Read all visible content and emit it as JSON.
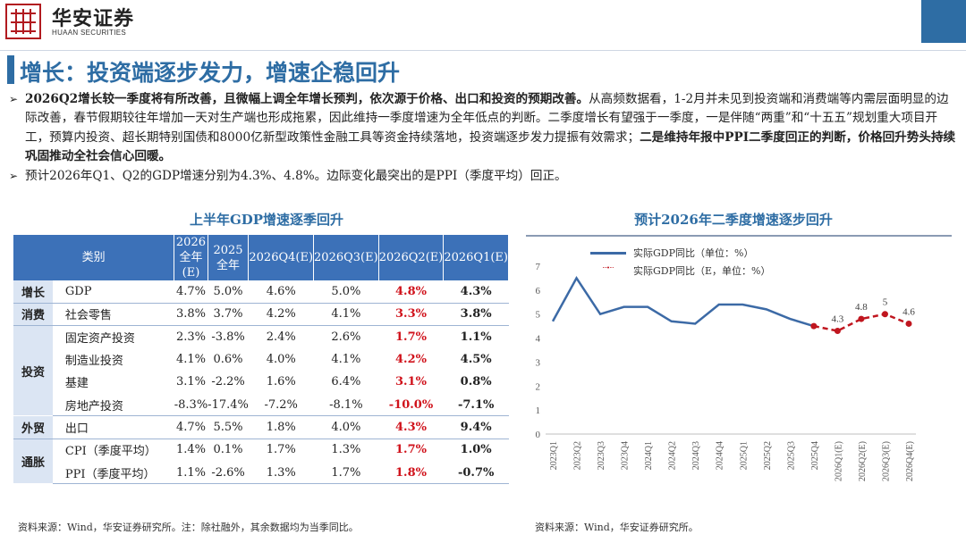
{
  "brand": {
    "cn": "华安证券",
    "en": "HUAAN SECURITIES"
  },
  "title": "增长：投资端逐步发力，增速企稳回升",
  "bullets": [
    {
      "bold": "2026Q2增长较一季度将有所改善，且微幅上调全年增长预判，依次源于价格、出口和投资的预期改善。",
      "text1": "从高频数据看，1-2月并未见到投资端和消费端等内需层面明显的边际改善，春节假期较往年增加一天对生产端也形成拖累，因此维持一季度增速为全年低点的判断。二季度增长有望强于一季度，一是伴随“两重”和“十五五”规划重大项目开工，预算内投资、超长期特别国债和8000亿新型政策性金融工具等资金持续落地，投资端逐步发力提振有效需求；",
      "bold2": "二是维持年报中PPI二季度回正的判断，价格回升势头持续巩固推动全社会信心回暖。"
    },
    {
      "text1": "预计2026年Q1、Q2的GDP增速分别为4.3%、4.8%。边际变化最突出的是PPI（季度平均）回正。"
    }
  ],
  "left_heading": "上半年GDP增速逐季回升",
  "right_heading": "预计2026年二季度增速逐步回升",
  "table": {
    "header_category": "类别",
    "columns": [
      "2026全年(E)",
      "2025全年",
      "2026Q4(E)",
      "2026Q3(E)",
      "2026Q2(E)",
      "2026Q1(E)"
    ],
    "groups": [
      {
        "name": "增长",
        "rows": [
          {
            "item": "GDP",
            "values": [
              "4.7%",
              "5.0%",
              "4.6%",
              "5.0%",
              "4.8%",
              "4.3%"
            ]
          }
        ]
      },
      {
        "name": "消费",
        "rows": [
          {
            "item": "社会零售",
            "values": [
              "3.8%",
              "3.7%",
              "4.2%",
              "4.1%",
              "3.3%",
              "3.8%"
            ]
          }
        ]
      },
      {
        "name": "投资",
        "rows": [
          {
            "item": "固定资产投资",
            "values": [
              "2.3%",
              "-3.8%",
              "2.4%",
              "2.6%",
              "1.7%",
              "1.1%"
            ]
          },
          {
            "item": "制造业投资",
            "values": [
              "4.1%",
              "0.6%",
              "4.0%",
              "4.1%",
              "4.2%",
              "4.5%"
            ]
          },
          {
            "item": "基建",
            "values": [
              "3.1%",
              "-2.2%",
              "1.6%",
              "6.4%",
              "3.1%",
              "0.8%"
            ]
          },
          {
            "item": "房地产投资",
            "values": [
              "-8.3%",
              "-17.4%",
              "-7.2%",
              "-8.1%",
              "-10.0%",
              "-7.1%"
            ]
          }
        ]
      },
      {
        "name": "外贸",
        "rows": [
          {
            "item": "出口",
            "values": [
              "4.7%",
              "5.5%",
              "1.8%",
              "4.0%",
              "4.3%",
              "9.4%"
            ]
          }
        ]
      },
      {
        "name": "通胀",
        "rows": [
          {
            "item": "CPI（季度平均）",
            "values": [
              "1.4%",
              "0.1%",
              "1.7%",
              "1.3%",
              "1.7%",
              "1.0%"
            ]
          },
          {
            "item": "PPI（季度平均）",
            "values": [
              "1.1%",
              "-2.6%",
              "1.3%",
              "1.7%",
              "1.8%",
              "-0.7%"
            ]
          }
        ]
      }
    ]
  },
  "source_left": "资料来源：Wind，华安证券研究所。注：除社融外，其余数据均为当季同比。",
  "source_right": "资料来源：Wind，华安证券研究所。",
  "colors": {
    "accent": "#2e6da4",
    "header": "#3c71b8",
    "actual": "#3c6aa6",
    "forecast": "#c0161f",
    "highlight": "#d0121b"
  },
  "chart_data": {
    "type": "line",
    "categories": [
      "2023Q1",
      "2023Q2",
      "2023Q3",
      "2023Q4",
      "2024Q1",
      "2024Q2",
      "2024Q3",
      "2024Q4",
      "2025Q1",
      "2025Q2",
      "2025Q3",
      "2025Q4",
      "2026Q1(E)",
      "2026Q2(E)",
      "2026Q3(E)",
      "2026Q4(E)"
    ],
    "series": [
      {
        "name": "实际GDP同比（单位：%）",
        "values": [
          4.7,
          6.5,
          5.0,
          5.3,
          5.3,
          4.7,
          4.6,
          5.4,
          5.4,
          5.2,
          4.8,
          4.5,
          null,
          null,
          null,
          null
        ]
      },
      {
        "name": "实际GDP同比（E，单位：%）",
        "values": [
          null,
          null,
          null,
          null,
          null,
          null,
          null,
          null,
          null,
          null,
          null,
          4.5,
          4.3,
          4.8,
          5.0,
          4.6
        ],
        "data_labels": [
          "",
          "",
          "",
          "",
          "",
          "",
          "",
          "",
          "",
          "",
          "",
          "",
          "4.3",
          "4.8",
          "5",
          "4.6"
        ]
      }
    ],
    "ylim": [
      0,
      7
    ],
    "yticks": [
      "0",
      "1",
      "2",
      "3",
      "4",
      "5",
      "6",
      "7"
    ],
    "legend_position": "top-left",
    "grid": false
  }
}
